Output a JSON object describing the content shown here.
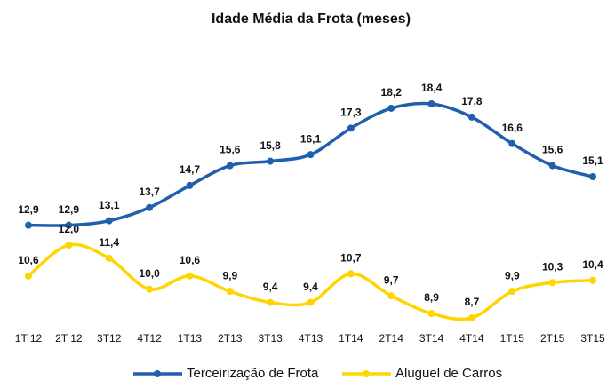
{
  "chart_data": {
    "type": "line",
    "title": "Idade Média da Frota (meses)",
    "categories": [
      "1T 12",
      "2T 12",
      "3T12",
      "4T12",
      "1T13",
      "2T13",
      "3T13",
      "4T13",
      "1T14",
      "2T14",
      "3T14",
      "4T14",
      "1T15",
      "2T15",
      "3T15"
    ],
    "series": [
      {
        "name": "Terceirização de Frota",
        "color": "#1f5fad",
        "values": [
          12.9,
          12.9,
          13.1,
          13.7,
          14.7,
          15.6,
          15.8,
          16.1,
          17.3,
          18.2,
          18.4,
          17.8,
          16.6,
          15.6,
          15.1
        ],
        "value_labels": [
          "12,9",
          "12,9",
          "13,1",
          "13,7",
          "14,7",
          "15,6",
          "15,8",
          "16,1",
          "17,3",
          "18,2",
          "18,4",
          "17,8",
          "16,6",
          "15,6",
          "15,1"
        ]
      },
      {
        "name": "Aluguel de Carros",
        "color": "#ffd500",
        "values": [
          10.6,
          12.0,
          11.4,
          10.0,
          10.6,
          9.9,
          9.4,
          9.4,
          10.7,
          9.7,
          8.9,
          8.7,
          9.9,
          10.3,
          10.4
        ],
        "value_labels": [
          "10,6",
          "12,0",
          "11,4",
          "10,0",
          "10,6",
          "9,9",
          "9,4",
          "9,4",
          "10,7",
          "9,7",
          "8,9",
          "8,7",
          "9,9",
          "10,3",
          "10,4"
        ]
      }
    ],
    "legend": "bottom"
  }
}
